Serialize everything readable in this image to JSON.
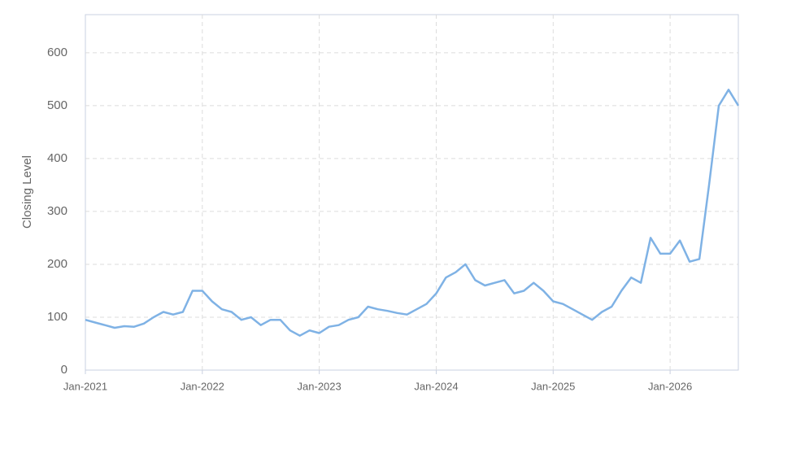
{
  "chart_data": {
    "type": "line",
    "y_label": "Closing Level",
    "x": [
      "2021-01",
      "2021-02",
      "2021-03",
      "2021-04",
      "2021-05",
      "2021-06",
      "2021-07",
      "2021-08",
      "2021-09",
      "2021-10",
      "2021-11",
      "2021-12",
      "2022-01",
      "2022-02",
      "2022-03",
      "2022-04",
      "2022-05",
      "2022-06",
      "2022-07",
      "2022-08",
      "2022-09",
      "2022-10",
      "2022-11",
      "2022-12",
      "2023-01",
      "2023-02",
      "2023-03",
      "2023-04",
      "2023-05",
      "2023-06",
      "2023-07",
      "2023-08",
      "2023-09",
      "2023-10",
      "2023-11",
      "2023-12",
      "2024-01",
      "2024-02",
      "2024-03",
      "2024-04",
      "2024-05",
      "2024-06",
      "2024-07",
      "2024-08",
      "2024-09",
      "2024-10",
      "2024-11",
      "2024-12",
      "2025-01",
      "2025-02",
      "2025-03",
      "2025-04",
      "2025-05",
      "2025-06",
      "2025-07",
      "2025-08",
      "2025-09",
      "2025-10",
      "2025-11",
      "2025-12",
      "2026-01",
      "2026-02",
      "2026-03",
      "2026-04",
      "2026-05",
      "2026-06",
      "2026-07",
      "2026-08"
    ],
    "series": [
      {
        "name": "Closing Level",
        "color": "#7fb2e5",
        "values": [
          95,
          90,
          85,
          80,
          83,
          82,
          88,
          100,
          110,
          105,
          110,
          150,
          150,
          130,
          115,
          110,
          95,
          100,
          85,
          95,
          95,
          75,
          65,
          75,
          70,
          82,
          85,
          95,
          100,
          120,
          115,
          112,
          108,
          105,
          115,
          125,
          145,
          175,
          185,
          200,
          170,
          160,
          165,
          170,
          145,
          150,
          165,
          150,
          130,
          125,
          115,
          105,
          95,
          110,
          120,
          150,
          175,
          165,
          250,
          220,
          220,
          245,
          205,
          210,
          350,
          500,
          530,
          500
        ]
      }
    ],
    "xlim": [
      "2021-01",
      "2026-08"
    ],
    "xticks": [
      {
        "value": "2021-01",
        "label": "Jan-2021"
      },
      {
        "value": "2022-01",
        "label": "Jan-2022"
      },
      {
        "value": "2023-01",
        "label": "Jan-2023"
      },
      {
        "value": "2024-01",
        "label": "Jan-2024"
      },
      {
        "value": "2025-01",
        "label": "Jan-2025"
      },
      {
        "value": "2026-01",
        "label": "Jan-2026"
      }
    ],
    "ylim": [
      0,
      672
    ],
    "yticks": [
      0,
      100,
      200,
      300,
      400,
      500,
      600
    ],
    "grid": true
  }
}
